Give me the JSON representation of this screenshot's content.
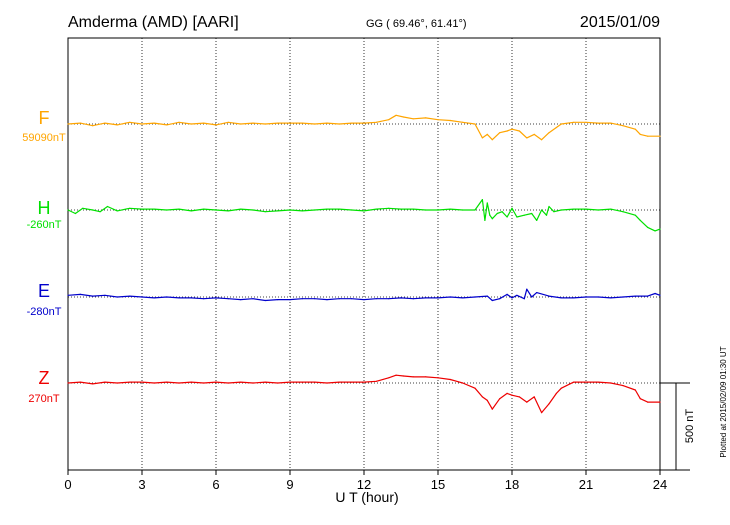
{
  "header": {
    "station": "Amderma (AMD)  [AARI]",
    "coords": "GG ( 69.46°,  61.41°)",
    "date": "2015/01/09"
  },
  "footer": {
    "plotted": "Plotted at 2015/02/09 01:30 UT",
    "scale_label": "500 nT"
  },
  "colors": {
    "F": "#ffa500",
    "H": "#00e000",
    "E": "#0000cc",
    "Z": "#ee0000"
  },
  "chart_data": {
    "type": "line",
    "xlabel": "U T (hour)",
    "xlim": [
      0,
      24
    ],
    "x_ticks": [
      0,
      3,
      6,
      9,
      12,
      15,
      18,
      21,
      24
    ],
    "grid": "dotted vertical every 3 h; dotted baseline per component",
    "scale_bar_nT": 500,
    "series": [
      {
        "name": "F",
        "baseline_label": "59090nT",
        "color": "#ffa500",
        "baseline_nT": 59090,
        "x": [
          0,
          0.5,
          1,
          1.5,
          2,
          2.5,
          3,
          3.5,
          4,
          4.5,
          5,
          5.5,
          6,
          6.5,
          7,
          7.5,
          8,
          8.5,
          9,
          9.5,
          10,
          10.5,
          11,
          11.5,
          12,
          12.5,
          13,
          13.3,
          13.6,
          14,
          14.5,
          15,
          15.5,
          16,
          16.5,
          16.8,
          17,
          17.2,
          17.5,
          17.8,
          18,
          18.3,
          18.6,
          18.9,
          19.2,
          19.5,
          19.8,
          20,
          20.5,
          21,
          21.5,
          22,
          22.5,
          23,
          23.2,
          23.5,
          24
        ],
        "y": [
          0,
          5,
          -10,
          5,
          -5,
          10,
          0,
          5,
          -5,
          10,
          0,
          5,
          -5,
          10,
          0,
          5,
          0,
          5,
          5,
          5,
          0,
          5,
          0,
          5,
          5,
          10,
          25,
          50,
          40,
          30,
          35,
          25,
          20,
          10,
          0,
          -80,
          -60,
          -90,
          -50,
          -40,
          -30,
          -40,
          -80,
          -60,
          -90,
          -50,
          -20,
          0,
          10,
          10,
          5,
          5,
          -10,
          -30,
          -60,
          -70,
          -70
        ]
      },
      {
        "name": "H",
        "baseline_label": "-260nT",
        "color": "#00e000",
        "baseline_nT": -260,
        "x": [
          0,
          0.3,
          0.6,
          1,
          1.3,
          1.6,
          2,
          2.5,
          3,
          3.5,
          4,
          4.5,
          5,
          5.5,
          6,
          6.5,
          7,
          7.5,
          8,
          8.5,
          9,
          9.5,
          10,
          10.5,
          11,
          11.5,
          12,
          12.5,
          13,
          13.5,
          14,
          14.5,
          15,
          15.5,
          16,
          16.5,
          16.8,
          16.9,
          17,
          17.1,
          17.2,
          17.4,
          17.6,
          17.8,
          18,
          18.2,
          18.5,
          18.8,
          19,
          19.2,
          19.4,
          19.5,
          19.7,
          20,
          20.5,
          21,
          21.5,
          22,
          22.5,
          23,
          23.2,
          23.5,
          23.8,
          24
        ],
        "y": [
          0,
          -20,
          10,
          0,
          -10,
          20,
          -5,
          10,
          5,
          5,
          0,
          5,
          -5,
          5,
          0,
          -5,
          5,
          0,
          -10,
          -5,
          0,
          -5,
          0,
          5,
          5,
          0,
          -5,
          5,
          10,
          5,
          5,
          0,
          0,
          5,
          0,
          0,
          60,
          -60,
          40,
          -30,
          -50,
          -20,
          -10,
          -40,
          10,
          -40,
          -30,
          -20,
          -60,
          0,
          -30,
          20,
          -10,
          0,
          5,
          5,
          0,
          5,
          -10,
          -30,
          -60,
          -100,
          -120,
          -110
        ]
      },
      {
        "name": "E",
        "baseline_label": "-280nT",
        "color": "#0000cc",
        "baseline_nT": -280,
        "x": [
          0,
          0.5,
          1,
          1.5,
          2,
          2.5,
          3,
          3.5,
          4,
          4.5,
          5,
          5.5,
          6,
          6.5,
          7,
          7.5,
          8,
          8.5,
          9,
          9.5,
          10,
          10.5,
          11,
          11.5,
          12,
          12.5,
          13,
          13.5,
          14,
          14.5,
          15,
          15.5,
          16,
          16.5,
          17,
          17.2,
          17.5,
          17.8,
          18,
          18.2,
          18.5,
          18.6,
          18.8,
          19,
          19.5,
          20,
          20.5,
          21,
          21.5,
          22,
          22.5,
          23,
          23.5,
          23.8,
          24
        ],
        "y": [
          10,
          15,
          5,
          10,
          0,
          5,
          0,
          -5,
          0,
          -5,
          -5,
          -10,
          -5,
          -10,
          -15,
          -10,
          -20,
          -15,
          -15,
          -10,
          -10,
          -15,
          -10,
          -10,
          -15,
          -10,
          -10,
          -5,
          -10,
          -5,
          -5,
          0,
          -5,
          0,
          5,
          -20,
          -10,
          15,
          -5,
          10,
          -10,
          45,
          0,
          25,
          5,
          -5,
          -5,
          0,
          0,
          -5,
          0,
          5,
          5,
          20,
          10
        ]
      },
      {
        "name": "Z",
        "baseline_label": "270nT",
        "color": "#ee0000",
        "baseline_nT": 270,
        "x": [
          0,
          0.5,
          1,
          1.5,
          2,
          2.5,
          3,
          3.5,
          4,
          4.5,
          5,
          5.5,
          6,
          6.5,
          7,
          7.5,
          8,
          8.5,
          9,
          9.5,
          10,
          10.5,
          11,
          11.5,
          12,
          12.5,
          13,
          13.3,
          13.6,
          14,
          14.5,
          15,
          15.5,
          16,
          16.5,
          16.8,
          17,
          17.2,
          17.5,
          17.8,
          18,
          18.3,
          18.6,
          18.9,
          19.2,
          19.5,
          19.8,
          20,
          20.5,
          21,
          21.5,
          22,
          22.5,
          23,
          23.2,
          23.5,
          24
        ],
        "y": [
          0,
          5,
          -5,
          5,
          0,
          5,
          5,
          0,
          5,
          0,
          5,
          0,
          5,
          0,
          5,
          0,
          5,
          0,
          5,
          5,
          5,
          0,
          5,
          5,
          5,
          10,
          30,
          45,
          40,
          35,
          35,
          30,
          20,
          0,
          -30,
          -80,
          -100,
          -150,
          -90,
          -60,
          -70,
          -80,
          -110,
          -80,
          -170,
          -120,
          -60,
          -30,
          5,
          5,
          5,
          0,
          -15,
          -40,
          -90,
          -110,
          -110
        ]
      }
    ]
  }
}
